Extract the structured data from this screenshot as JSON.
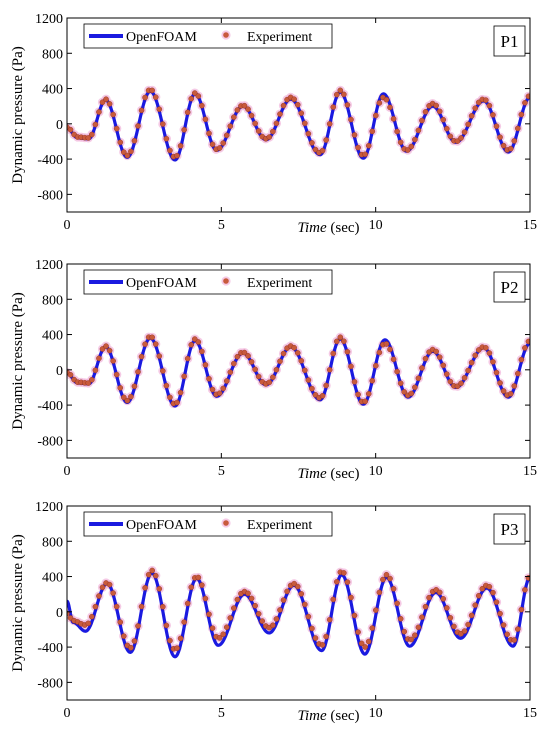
{
  "colors": {
    "openfoam": "#1a1ae0",
    "experiment_fill": "#c85a3c",
    "experiment_halo": "#f2b8dc",
    "axis": "#000000"
  },
  "chart_data": [
    {
      "type": "line",
      "panel_label": "P1",
      "xlabel_italic": "Time",
      "xlabel_unit": " (sec)",
      "ylabel": "Dynamic pressure (Pa)",
      "xlim": [
        0,
        15
      ],
      "ylim": [
        -1000,
        1200
      ],
      "xticks": [
        0,
        5,
        10,
        15
      ],
      "yticks": [
        -800,
        -400,
        0,
        400,
        800,
        1200
      ],
      "legend": {
        "placement": "top-left",
        "entries": [
          "OpenFOAM",
          "Experiment"
        ]
      },
      "series": [
        {
          "name": "OpenFOAM",
          "style": "line",
          "x": [
            0,
            0.35,
            0.7,
            1.25,
            1.95,
            2.7,
            3.5,
            4.15,
            4.85,
            5.7,
            6.45,
            7.25,
            8.2,
            8.85,
            9.6,
            10.25,
            11.0,
            11.85,
            12.6,
            13.5,
            14.3,
            15
          ],
          "y": [
            -50,
            -160,
            -170,
            270,
            -380,
            370,
            -410,
            340,
            -300,
            200,
            -180,
            280,
            -350,
            360,
            -390,
            340,
            -310,
            200,
            -210,
            260,
            -320,
            300
          ]
        },
        {
          "name": "Experiment",
          "style": "markers",
          "x": [
            0,
            0.35,
            0.7,
            1.25,
            1.95,
            2.7,
            3.5,
            4.15,
            4.85,
            5.7,
            6.45,
            7.25,
            8.2,
            8.85,
            9.6,
            10.25,
            11.0,
            11.85,
            12.6,
            13.5,
            14.3,
            15
          ],
          "y": [
            -40,
            -150,
            -160,
            280,
            -360,
            390,
            -380,
            350,
            -290,
            210,
            -170,
            300,
            -330,
            380,
            -360,
            300,
            -300,
            230,
            -200,
            280,
            -300,
            320
          ]
        }
      ]
    },
    {
      "type": "line",
      "panel_label": "P2",
      "xlabel_italic": "Time",
      "xlabel_unit": " (sec)",
      "ylabel": "Dynamic pressure (Pa)",
      "xlim": [
        0,
        15
      ],
      "ylim": [
        -1000,
        1200
      ],
      "xticks": [
        0,
        5,
        10,
        15
      ],
      "yticks": [
        -800,
        -400,
        0,
        400,
        800,
        1200
      ],
      "legend": {
        "placement": "top-left",
        "entries": [
          "OpenFOAM",
          "Experiment"
        ]
      },
      "series": [
        {
          "name": "OpenFOAM",
          "style": "line",
          "x": [
            0,
            0.35,
            0.7,
            1.25,
            1.95,
            2.7,
            3.5,
            4.15,
            4.85,
            5.7,
            6.45,
            7.25,
            8.2,
            8.85,
            9.6,
            10.3,
            11.05,
            11.85,
            12.6,
            13.5,
            14.3,
            15
          ],
          "y": [
            -40,
            -150,
            -160,
            260,
            -370,
            360,
            -410,
            330,
            -300,
            190,
            -170,
            260,
            -340,
            350,
            -390,
            340,
            -310,
            210,
            -200,
            250,
            -310,
            300
          ]
        },
        {
          "name": "Experiment",
          "style": "markers",
          "x": [
            0,
            0.35,
            0.7,
            1.25,
            1.95,
            2.7,
            3.5,
            4.15,
            4.85,
            5.7,
            6.45,
            7.25,
            8.2,
            8.85,
            9.6,
            10.3,
            11.05,
            11.85,
            12.6,
            13.5,
            14.3,
            15
          ],
          "y": [
            -30,
            -140,
            -150,
            270,
            -350,
            380,
            -390,
            350,
            -280,
            200,
            -160,
            270,
            -320,
            370,
            -370,
            300,
            -290,
            230,
            -190,
            260,
            -290,
            330
          ]
        }
      ]
    },
    {
      "type": "line",
      "panel_label": "P3",
      "xlabel_italic": "Time",
      "xlabel_unit": " (sec)",
      "ylabel": "Dynamic pressure (Pa)",
      "xlim": [
        0,
        15
      ],
      "ylim": [
        -1000,
        1200
      ],
      "xticks": [
        0,
        5,
        10,
        15
      ],
      "yticks": [
        -800,
        -400,
        0,
        400,
        800,
        1200
      ],
      "legend": {
        "placement": "top-left",
        "entries": [
          "OpenFOAM",
          "Experiment"
        ]
      },
      "series": [
        {
          "name": "OpenFOAM",
          "style": "line",
          "x": [
            0,
            0.2,
            0.6,
            1.3,
            2.05,
            2.75,
            3.5,
            4.2,
            4.9,
            5.75,
            6.55,
            7.35,
            8.25,
            8.9,
            9.65,
            10.35,
            11.1,
            11.95,
            12.75,
            13.6,
            14.45,
            15
          ],
          "y": [
            120,
            -120,
            -220,
            320,
            -460,
            440,
            -510,
            380,
            -380,
            200,
            -240,
            300,
            -440,
            420,
            -480,
            390,
            -390,
            220,
            -300,
            270,
            -390,
            390
          ]
        },
        {
          "name": "Experiment",
          "style": "markers",
          "x": [
            0,
            0.2,
            0.6,
            1.3,
            2.05,
            2.75,
            3.5,
            4.2,
            4.9,
            5.75,
            6.55,
            7.35,
            8.25,
            8.9,
            9.65,
            10.35,
            11.1,
            11.95,
            12.75,
            13.6,
            14.45,
            15
          ],
          "y": [
            -20,
            -100,
            -150,
            330,
            -410,
            470,
            -430,
            400,
            -300,
            230,
            -180,
            320,
            -380,
            460,
            -400,
            420,
            -320,
            250,
            -250,
            300,
            -330,
            400
          ]
        }
      ]
    }
  ]
}
